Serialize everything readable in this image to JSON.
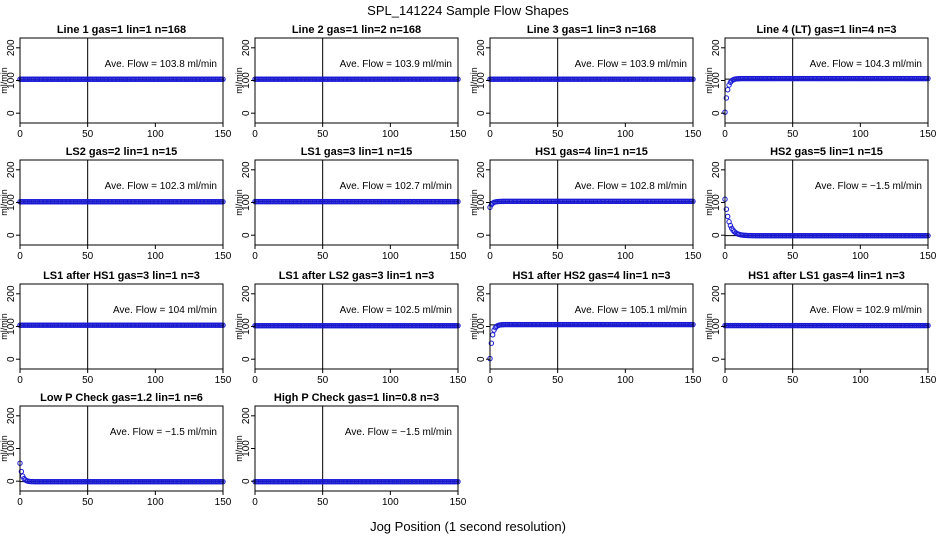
{
  "figure": {
    "title": "SPL_141224  Sample Flow Shapes",
    "xlabel": "Jog Position (1 second resolution)",
    "colors": {
      "points": "#1a1ad6",
      "lines": "#000000",
      "background": "#ffffff"
    }
  },
  "chart_data": [
    {
      "type": "scatter",
      "title": "Line 1 gas=1 lin=1 n=168",
      "annotation": "Ave. Flow = 103.8  ml/min",
      "ylabel": "ml/min",
      "xlim": [
        0,
        150
      ],
      "ylim": [
        -30,
        230
      ],
      "xticks": [
        0,
        50,
        100,
        150
      ],
      "yticks": [
        0,
        100,
        200
      ],
      "vline": 50,
      "hline": 103.8,
      "shape": "flat",
      "plateau": 103.8
    },
    {
      "type": "scatter",
      "title": "Line 2 gas=1 lin=2 n=168",
      "annotation": "Ave. Flow = 103.9  ml/min",
      "ylabel": "ml/min",
      "xlim": [
        0,
        150
      ],
      "ylim": [
        -30,
        230
      ],
      "xticks": [
        0,
        50,
        100,
        150
      ],
      "yticks": [
        0,
        100,
        200
      ],
      "vline": 50,
      "hline": 103.9,
      "shape": "flat",
      "plateau": 103.9
    },
    {
      "type": "scatter",
      "title": "Line 3 gas=1 lin=3 n=168",
      "annotation": "Ave. Flow = 103.9  ml/min",
      "ylabel": "ml/min",
      "xlim": [
        0,
        150
      ],
      "ylim": [
        -30,
        230
      ],
      "xticks": [
        0,
        50,
        100,
        150
      ],
      "yticks": [
        0,
        100,
        200
      ],
      "vline": 50,
      "hline": 103.9,
      "shape": "flat",
      "plateau": 103.9
    },
    {
      "type": "scatter",
      "title": "Line 4 (LT) gas=1 lin=4 n=3",
      "annotation": "Ave. Flow = 104.3  ml/min",
      "ylabel": "ml/min",
      "xlim": [
        0,
        150
      ],
      "ylim": [
        -30,
        230
      ],
      "xticks": [
        0,
        50,
        100,
        150
      ],
      "yticks": [
        0,
        100,
        200
      ],
      "vline": 50,
      "hline": 104.3,
      "shape": "rise",
      "plateau": 106,
      "start": 3,
      "rate": 0.55
    },
    {
      "type": "scatter",
      "title": "LS2 gas=2 lin=1 n=15",
      "annotation": "Ave. Flow = 102.3  ml/min",
      "ylabel": "ml/min",
      "xlim": [
        0,
        150
      ],
      "ylim": [
        -30,
        230
      ],
      "xticks": [
        0,
        50,
        100,
        150
      ],
      "yticks": [
        0,
        100,
        200
      ],
      "vline": 50,
      "hline": 102.3,
      "shape": "flat",
      "plateau": 102.3
    },
    {
      "type": "scatter",
      "title": "LS1 gas=3 lin=1 n=15",
      "annotation": "Ave. Flow = 102.7  ml/min",
      "ylabel": "ml/min",
      "xlim": [
        0,
        150
      ],
      "ylim": [
        -30,
        230
      ],
      "xticks": [
        0,
        50,
        100,
        150
      ],
      "yticks": [
        0,
        100,
        200
      ],
      "vline": 50,
      "hline": 102.7,
      "shape": "flat",
      "plateau": 102.7
    },
    {
      "type": "scatter",
      "title": "HS1 gas=4 lin=1 n=15",
      "annotation": "Ave. Flow = 102.8  ml/min",
      "ylabel": "ml/min",
      "xlim": [
        0,
        150
      ],
      "ylim": [
        -30,
        230
      ],
      "xticks": [
        0,
        50,
        100,
        150
      ],
      "yticks": [
        0,
        100,
        200
      ],
      "vline": 50,
      "hline": 102.8,
      "shape": "rise",
      "plateau": 103.5,
      "start": 85,
      "rate": 0.6
    },
    {
      "type": "scatter",
      "title": "HS2 gas=5 lin=1 n=15",
      "annotation": "Ave. Flow = −1.5  ml/min",
      "ylabel": "ml/min",
      "xlim": [
        0,
        150
      ],
      "ylim": [
        -30,
        230
      ],
      "xticks": [
        0,
        50,
        100,
        150
      ],
      "yticks": [
        0,
        100,
        200
      ],
      "vline": 50,
      "hline": -1.5,
      "shape": "decay",
      "plateau": -1.5,
      "start": 110,
      "rate": 0.32
    },
    {
      "type": "scatter",
      "title": "LS1 after HS1 gas=3 lin=1 n=3",
      "annotation": "Ave. Flow = 104  ml/min",
      "ylabel": "ml/min",
      "xlim": [
        0,
        150
      ],
      "ylim": [
        -30,
        230
      ],
      "xticks": [
        0,
        50,
        100,
        150
      ],
      "yticks": [
        0,
        100,
        200
      ],
      "vline": 50,
      "hline": 104,
      "shape": "flat",
      "plateau": 104
    },
    {
      "type": "scatter",
      "title": "LS1 after LS2 gas=3 lin=1 n=3",
      "annotation": "Ave. Flow = 102.5  ml/min",
      "ylabel": "ml/min",
      "xlim": [
        0,
        150
      ],
      "ylim": [
        -30,
        230
      ],
      "xticks": [
        0,
        50,
        100,
        150
      ],
      "yticks": [
        0,
        100,
        200
      ],
      "vline": 50,
      "hline": 102.5,
      "shape": "flat",
      "plateau": 102.5
    },
    {
      "type": "scatter",
      "title": "HS1 after HS2 gas=4 lin=1 n=3",
      "annotation": "Ave. Flow = 105.1  ml/min",
      "ylabel": "ml/min",
      "xlim": [
        0,
        150
      ],
      "ylim": [
        -30,
        230
      ],
      "xticks": [
        0,
        50,
        100,
        150
      ],
      "yticks": [
        0,
        100,
        200
      ],
      "vline": 50,
      "hline": 105.1,
      "shape": "rise",
      "plateau": 106,
      "start": 2,
      "rate": 0.6
    },
    {
      "type": "scatter",
      "title": "HS1 after LS1 gas=4 lin=1 n=3",
      "annotation": "Ave. Flow = 102.9  ml/min",
      "ylabel": "ml/min",
      "xlim": [
        0,
        150
      ],
      "ylim": [
        -30,
        230
      ],
      "xticks": [
        0,
        50,
        100,
        150
      ],
      "yticks": [
        0,
        100,
        200
      ],
      "vline": 50,
      "hline": 102.9,
      "shape": "flat",
      "plateau": 102.9
    },
    {
      "type": "scatter",
      "title": "Low P Check gas=1.2 lin=1 n=6",
      "annotation": "Ave. Flow = −1.5  ml/min",
      "ylabel": "ml/min",
      "xlim": [
        0,
        150
      ],
      "ylim": [
        -30,
        230
      ],
      "xticks": [
        0,
        50,
        100,
        150
      ],
      "yticks": [
        0,
        100,
        200
      ],
      "vline": 50,
      "hline": -1.5,
      "shape": "decay",
      "plateau": -1.5,
      "start": 55,
      "rate": 0.6
    },
    {
      "type": "scatter",
      "title": "High P Check gas=1 lin=0.8 n=3",
      "annotation": "Ave. Flow = −1.5  ml/min",
      "ylabel": "ml/min",
      "xlim": [
        0,
        150
      ],
      "ylim": [
        -30,
        230
      ],
      "xticks": [
        0,
        50,
        100,
        150
      ],
      "yticks": [
        0,
        100,
        200
      ],
      "vline": 50,
      "hline": -1.5,
      "shape": "flat",
      "plateau": -1.5
    }
  ]
}
